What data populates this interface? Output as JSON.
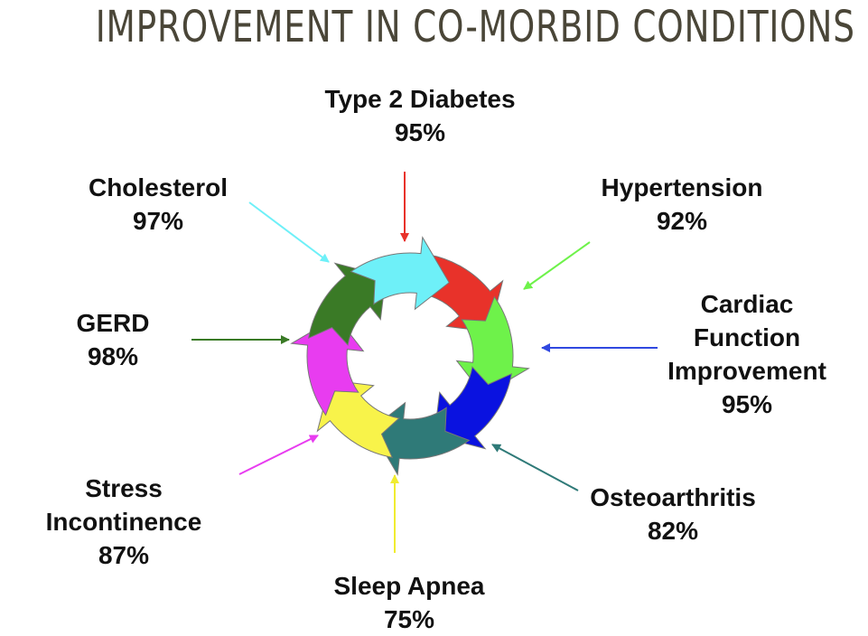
{
  "title": "IMPROVEMENT IN CO-MORBID CONDITIONS",
  "conditions": [
    {
      "name": "Type 2 Diabetes",
      "percent": "95%",
      "color": "#e8322a"
    },
    {
      "name": "Hypertension",
      "percent": "92%",
      "color": "#6ef24a"
    },
    {
      "name_lines": [
        "Cardiac",
        "Function",
        "Improvement"
      ],
      "percent": "95%",
      "color": "#0a12e0"
    },
    {
      "name": "Osteoarthritis",
      "percent": "82%",
      "color": "#2f7a78"
    },
    {
      "name": "Sleep Apnea",
      "percent": "75%",
      "color": "#f8f34a"
    },
    {
      "name_lines": [
        "Stress",
        "Incontinence"
      ],
      "percent": "87%",
      "color": "#e83cf0"
    },
    {
      "name": "GERD",
      "percent": "98%",
      "color": "#3a7a26"
    },
    {
      "name": "Cholesterol",
      "percent": "97%",
      "color": "#6ef0f8"
    }
  ]
}
